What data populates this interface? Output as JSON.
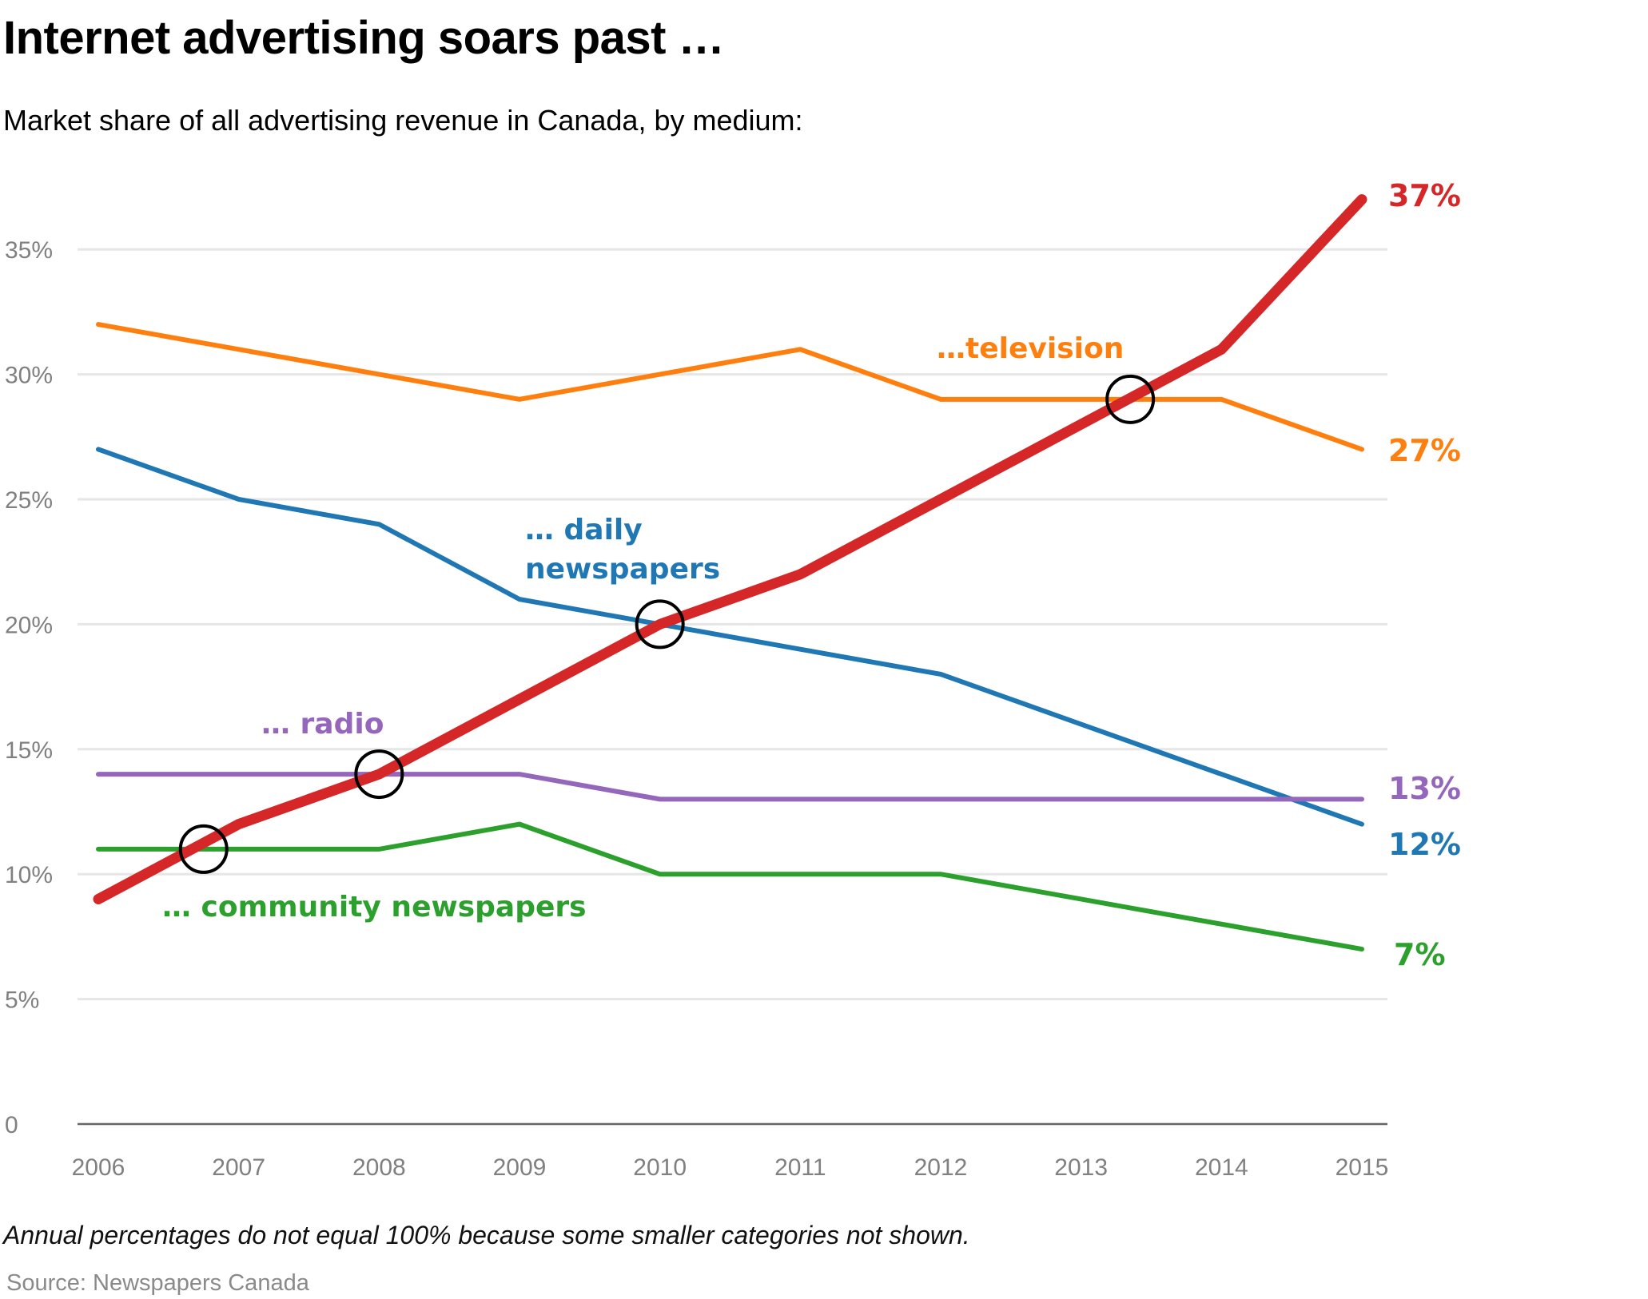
{
  "header": {
    "title": "Internet advertising soars past …",
    "subtitle": "Market share of all advertising revenue in Canada, by medium:"
  },
  "footer": {
    "note": "Annual percentages do not equal 100% because some smaller categories not shown.",
    "source": "Source: Newspapers Canada"
  },
  "chart_data": {
    "type": "line",
    "title": "Internet advertising soars past …",
    "subtitle": "Market share of all advertising revenue in Canada, by medium:",
    "xlabel": "",
    "ylabel": "",
    "x": [
      2006,
      2007,
      2008,
      2009,
      2010,
      2011,
      2012,
      2013,
      2014,
      2015
    ],
    "x_tick_labels": [
      "2006",
      "2007",
      "2008",
      "2009",
      "2010",
      "2011",
      "2012",
      "2013",
      "2014",
      "2015"
    ],
    "ylim": [
      0,
      37
    ],
    "y_ticks": [
      0,
      5,
      10,
      15,
      20,
      25,
      30,
      35
    ],
    "y_tick_labels": [
      "0",
      "5%",
      "10%",
      "15%",
      "20%",
      "25%",
      "30%",
      "35%"
    ],
    "grid": true,
    "legend": "none (direct labels)",
    "series": [
      {
        "name": "Internet",
        "label": "",
        "end_label": "37%",
        "color": "#d62728",
        "emphasis": true,
        "values": [
          9,
          12,
          14,
          17,
          20,
          22,
          25,
          28,
          31,
          37
        ]
      },
      {
        "name": "Television",
        "label": "…television",
        "end_label": "27%",
        "color": "#ff7f0e",
        "values": [
          32,
          31,
          30,
          29,
          30,
          31,
          29,
          29,
          29,
          27
        ]
      },
      {
        "name": "Daily newspapers",
        "label": "… daily newspapers",
        "label_lines": [
          "… daily",
          "newspapers"
        ],
        "end_label": "12%",
        "color": "#1f77b4",
        "values": [
          27,
          25,
          24,
          21,
          20,
          19,
          18,
          16,
          14,
          12
        ]
      },
      {
        "name": "Radio",
        "label": "… radio",
        "end_label": "13%",
        "color": "#9467bd",
        "values": [
          14,
          14,
          14,
          14,
          13,
          13,
          13,
          13,
          13,
          13
        ]
      },
      {
        "name": "Community newspapers",
        "label": "… community newspapers",
        "end_label": "7%",
        "color": "#2ca02c",
        "values": [
          11,
          11,
          11,
          12,
          10,
          10,
          10,
          9,
          8,
          7
        ]
      }
    ],
    "annotations": [
      {
        "type": "circle",
        "x": 2006.75,
        "y": 11,
        "note": "Internet passes community newspapers"
      },
      {
        "type": "circle",
        "x": 2008,
        "y": 14,
        "note": "Internet passes radio"
      },
      {
        "type": "circle",
        "x": 2010,
        "y": 20,
        "note": "Internet passes daily newspapers"
      },
      {
        "type": "circle",
        "x": 2013.35,
        "y": 29,
        "note": "Internet passes television"
      }
    ]
  }
}
